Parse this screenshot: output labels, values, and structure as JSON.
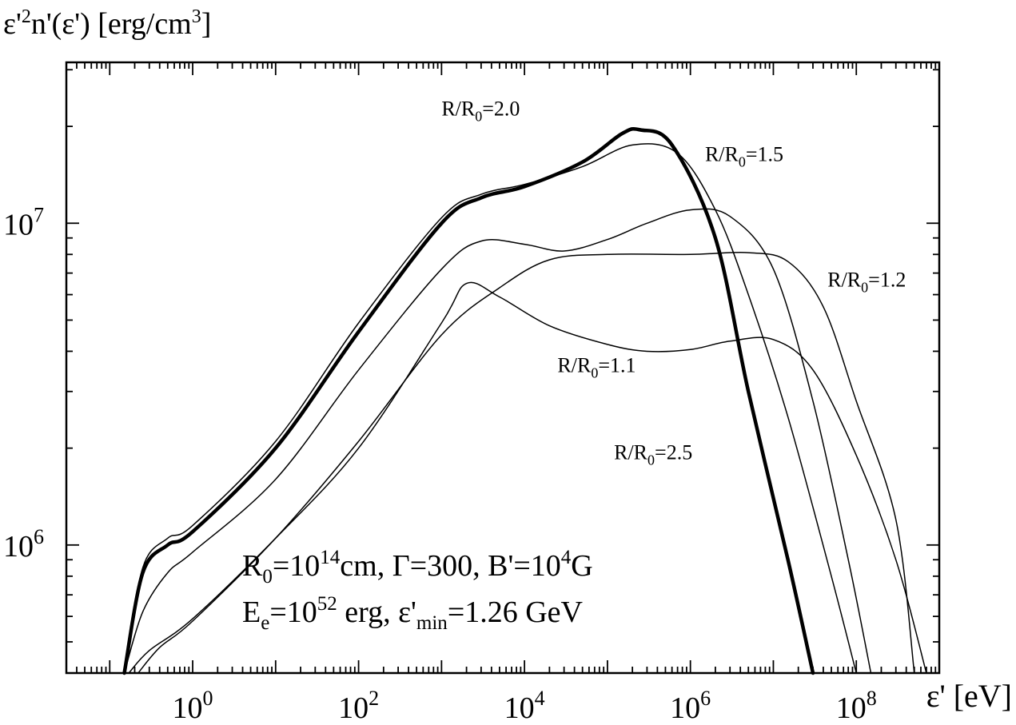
{
  "chart_data": {
    "type": "line",
    "xscale": "log",
    "yscale": "log",
    "xlim": [
      0.03,
      1000000000
    ],
    "ylim": [
      400000,
      31622777
    ],
    "xlabel": "ε' [eV]",
    "ylabel": {
      "base": "ε'",
      "sup1": "2",
      "rest": "n'(ε') [erg/cm",
      "sup2": "3",
      "end": "]"
    },
    "x_ticks": [
      {
        "value": 1,
        "base": "10",
        "exp": "0"
      },
      {
        "value": 100,
        "base": "10",
        "exp": "2"
      },
      {
        "value": 10000,
        "base": "10",
        "exp": "4"
      },
      {
        "value": 1000000,
        "base": "10",
        "exp": "6"
      },
      {
        "value": 100000000,
        "base": "10",
        "exp": "8"
      }
    ],
    "y_ticks": [
      {
        "value": 1000000,
        "base": "10",
        "exp": "6"
      },
      {
        "value": 10000000,
        "base": "10",
        "exp": "7"
      }
    ],
    "series": [
      {
        "name": "R/R0=1.1",
        "width": 1.5,
        "points": [
          [
            0.17,
            400000
          ],
          [
            0.3,
            470000
          ],
          [
            1,
            590000
          ],
          [
            10,
            1050000
          ],
          [
            100,
            2000000
          ],
          [
            1000,
            4900000
          ],
          [
            2000,
            6500000
          ],
          [
            5000,
            5900000
          ],
          [
            20000,
            4800000
          ],
          [
            100000,
            4200000
          ],
          [
            300000,
            4000000
          ],
          [
            1000000,
            4050000
          ],
          [
            3000000,
            4300000
          ],
          [
            10000000,
            4350000
          ],
          [
            30000000,
            3500000
          ],
          [
            100000000,
            1900000
          ],
          [
            300000000,
            900000
          ],
          [
            700000000,
            400000
          ]
        ]
      },
      {
        "name": "R/R0=1.2",
        "width": 1.5,
        "points": [
          [
            0.22,
            400000
          ],
          [
            0.4,
            480000
          ],
          [
            1,
            580000
          ],
          [
            10,
            1050000
          ],
          [
            100,
            2100000
          ],
          [
            1000,
            4500000
          ],
          [
            5000,
            6300000
          ],
          [
            20000,
            7700000
          ],
          [
            100000,
            8000000
          ],
          [
            1000000,
            8000000
          ],
          [
            5000000,
            8100000
          ],
          [
            15000000,
            7600000
          ],
          [
            40000000,
            5500000
          ],
          [
            100000000,
            2800000
          ],
          [
            300000000,
            1200000
          ],
          [
            500000000,
            400000
          ]
        ]
      },
      {
        "name": "R/R0=1.5",
        "width": 1.5,
        "points": [
          [
            0.15,
            400000
          ],
          [
            0.25,
            620000
          ],
          [
            0.5,
            820000
          ],
          [
            1,
            950000
          ],
          [
            10,
            1600000
          ],
          [
            100,
            3500000
          ],
          [
            1000,
            7200000
          ],
          [
            3000,
            8800000
          ],
          [
            10000,
            8600000
          ],
          [
            30000,
            8200000
          ],
          [
            100000,
            8900000
          ],
          [
            300000,
            10000000
          ],
          [
            1000000,
            11000000
          ],
          [
            3000000,
            10500000
          ],
          [
            10000000,
            7200000
          ],
          [
            30000000,
            2800000
          ],
          [
            80000000,
            900000
          ],
          [
            150000000,
            400000
          ]
        ]
      },
      {
        "name": "R/R0=2.0",
        "width": 4.5,
        "points": [
          [
            0.15,
            400000
          ],
          [
            0.25,
            820000
          ],
          [
            0.5,
            1000000
          ],
          [
            1,
            1100000
          ],
          [
            10,
            2000000
          ],
          [
            100,
            4600000
          ],
          [
            1000,
            10000000
          ],
          [
            3000,
            12000000
          ],
          [
            10000,
            13000000
          ],
          [
            50000,
            15500000
          ],
          [
            150000,
            19000000
          ],
          [
            250000,
            19500000
          ],
          [
            600000,
            17500000
          ],
          [
            2000000,
            9000000
          ],
          [
            5000000,
            3000000
          ],
          [
            15000000,
            900000
          ],
          [
            30000000,
            400000
          ]
        ]
      },
      {
        "name": "R/R0=2.5",
        "width": 1.5,
        "points": [
          [
            0.15,
            400000
          ],
          [
            0.25,
            850000
          ],
          [
            0.5,
            1050000
          ],
          [
            1,
            1150000
          ],
          [
            10,
            2100000
          ],
          [
            100,
            4900000
          ],
          [
            1000,
            10400000
          ],
          [
            3000,
            12300000
          ],
          [
            10000,
            13200000
          ],
          [
            50000,
            15000000
          ],
          [
            200000,
            17500000
          ],
          [
            700000,
            16500000
          ],
          [
            2000000,
            11000000
          ],
          [
            5000000,
            6000000
          ],
          [
            15000000,
            2500000
          ],
          [
            50000000,
            800000
          ],
          [
            100000000,
            400000
          ]
        ]
      }
    ],
    "curve_labels": [
      {
        "name": "R/R0=2.0",
        "base": "R/R",
        "sub": "0",
        "rest": "=2.0",
        "x": 1000,
        "y": 21600000
      },
      {
        "name": "R/R0=1.5",
        "base": "R/R",
        "sub": "0",
        "rest": "=1.5",
        "x": 1500000,
        "y": 15600000
      },
      {
        "name": "R/R0=1.2",
        "base": "R/R",
        "sub": "0",
        "rest": "=1.2",
        "x": 45000000,
        "y": 6350000
      },
      {
        "name": "R/R0=1.1",
        "base": "R/R",
        "sub": "0",
        "rest": "=1.1",
        "x": 25000,
        "y": 3450000
      },
      {
        "name": "R/R0=2.5",
        "base": "R/R",
        "sub": "0",
        "rest": "=2.5",
        "x": 120000,
        "y": 1850000
      }
    ],
    "annotation": {
      "line1": [
        {
          "t": "R"
        },
        {
          "t": "0",
          "k": "sub"
        },
        {
          "t": "=10"
        },
        {
          "t": "14",
          "k": "sup"
        },
        {
          "t": "cm, Γ=300, B'=10"
        },
        {
          "t": "4",
          "k": "sup"
        },
        {
          "t": "G"
        }
      ],
      "line2": [
        {
          "t": "E"
        },
        {
          "t": "e",
          "k": "sub"
        },
        {
          "t": "=10"
        },
        {
          "t": "52",
          "k": "sup"
        },
        {
          "t": " erg, ε'"
        },
        {
          "t": "min",
          "k": "sub"
        },
        {
          "t": "=1.26 GeV"
        }
      ]
    },
    "grid": false,
    "legend": "none",
    "line_color": "#000000"
  }
}
